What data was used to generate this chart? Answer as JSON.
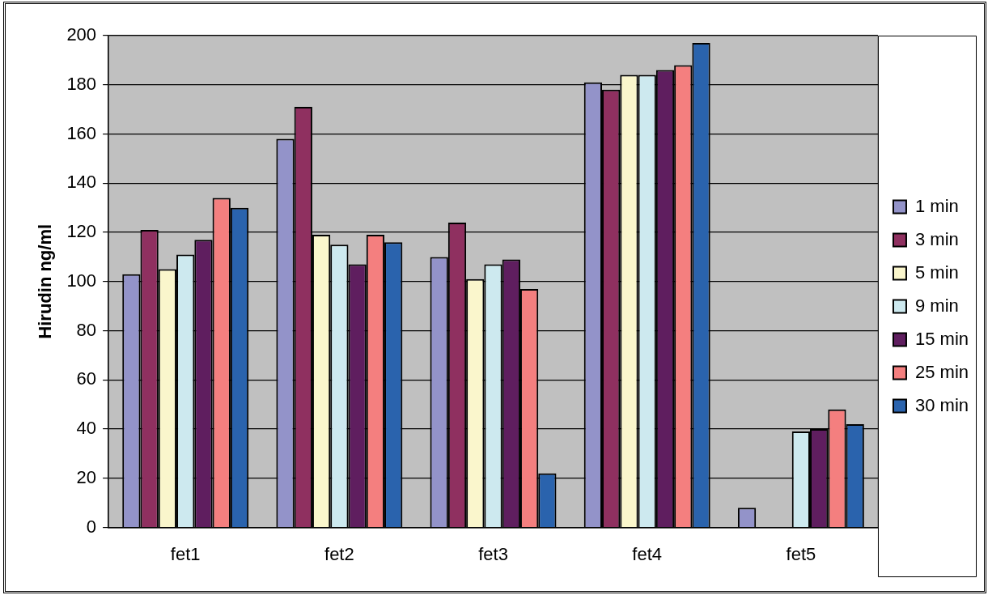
{
  "chart_data": {
    "type": "bar",
    "ylabel": "Hirudin ng/ml",
    "categories": [
      "fet1",
      "fet2",
      "fet3",
      "fet4",
      "fet5"
    ],
    "series": [
      {
        "name": "1 min",
        "color": "#9393c9",
        "values": [
          103,
          158,
          110,
          181,
          8
        ]
      },
      {
        "name": "3 min",
        "color": "#8f3060",
        "values": [
          121,
          171,
          124,
          178,
          null
        ]
      },
      {
        "name": "5 min",
        "color": "#faf6cc",
        "values": [
          105,
          119,
          101,
          184,
          null
        ]
      },
      {
        "name": "9 min",
        "color": "#cde9ef",
        "values": [
          111,
          115,
          107,
          184,
          39
        ]
      },
      {
        "name": "15 min",
        "color": "#5f1e5f",
        "values": [
          117,
          107,
          109,
          186,
          40
        ]
      },
      {
        "name": "25 min",
        "color": "#f47f7f",
        "values": [
          134,
          119,
          97,
          188,
          48
        ]
      },
      {
        "name": "30 min",
        "color": "#2a63ad",
        "values": [
          130,
          116,
          22,
          197,
          42
        ]
      }
    ],
    "ylim": [
      0,
      200
    ],
    "yticks": [
      0,
      20,
      40,
      60,
      80,
      100,
      120,
      140,
      160,
      180,
      200
    ],
    "grid": "y",
    "legend": "right"
  }
}
